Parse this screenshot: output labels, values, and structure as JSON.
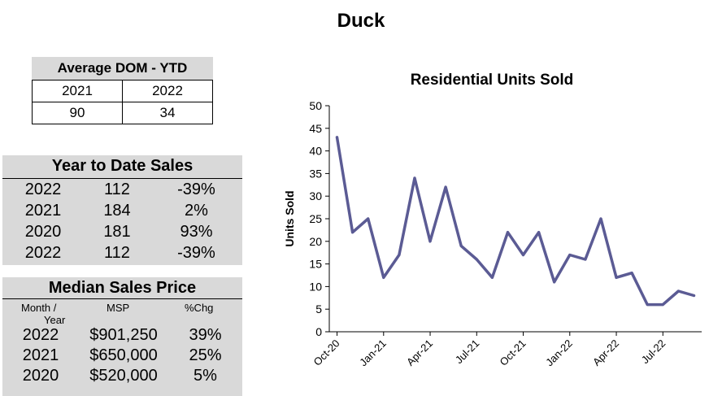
{
  "page_title": "Duck",
  "dom_table": {
    "title": "Average DOM - YTD",
    "headers": [
      "2021",
      "2022"
    ],
    "values": [
      "90",
      "34"
    ]
  },
  "ytd_sales": {
    "title": "Year to Date Sales",
    "rows": [
      {
        "year": "2022",
        "units": "112",
        "change": "-39%"
      },
      {
        "year": "2021",
        "units": "184",
        "change": "2%"
      },
      {
        "year": "2020",
        "units": "181",
        "change": "93%"
      },
      {
        "year": "2022",
        "units": "112",
        "change": "-39%"
      }
    ]
  },
  "median_price": {
    "title": "Median Sales Price",
    "col_month": "Month /",
    "col_year": "Year",
    "col_msp": "MSP",
    "col_chg": "%Chg",
    "rows": [
      {
        "year": "2022",
        "price": "$901,250",
        "change": "39%"
      },
      {
        "year": "2021",
        "price": "$650,000",
        "change": "25%"
      },
      {
        "year": "2020",
        "price": "$520,000",
        "change": "5%"
      }
    ]
  },
  "chart_data": {
    "type": "line",
    "title": "Residential Units Sold",
    "xlabel": "",
    "ylabel": "Units Sold",
    "ylim": [
      0,
      50
    ],
    "yticks": [
      0,
      5,
      10,
      15,
      20,
      25,
      30,
      35,
      40,
      45,
      50
    ],
    "x": [
      "Oct-20",
      "Nov-20",
      "Dec-20",
      "Jan-21",
      "Feb-21",
      "Mar-21",
      "Apr-21",
      "May-21",
      "Jun-21",
      "Jul-21",
      "Aug-21",
      "Sep-21",
      "Oct-21",
      "Nov-21",
      "Dec-21",
      "Jan-22",
      "Feb-22",
      "Mar-22",
      "Apr-22",
      "May-22",
      "Jun-22",
      "Jul-22",
      "Aug-22",
      "Sep-22"
    ],
    "xtick_labels": [
      "Oct-20",
      "Jan-21",
      "Apr-21",
      "Jul-21",
      "Oct-21",
      "Jan-22",
      "Apr-22",
      "Jul-22"
    ],
    "series": [
      {
        "name": "Units Sold",
        "color": "#5b5b94",
        "values": [
          43,
          22,
          25,
          12,
          17,
          34,
          20,
          32,
          19,
          16,
          12,
          22,
          17,
          22,
          11,
          17,
          16,
          25,
          12,
          13,
          6,
          6,
          9,
          8
        ]
      }
    ],
    "grid": false
  }
}
